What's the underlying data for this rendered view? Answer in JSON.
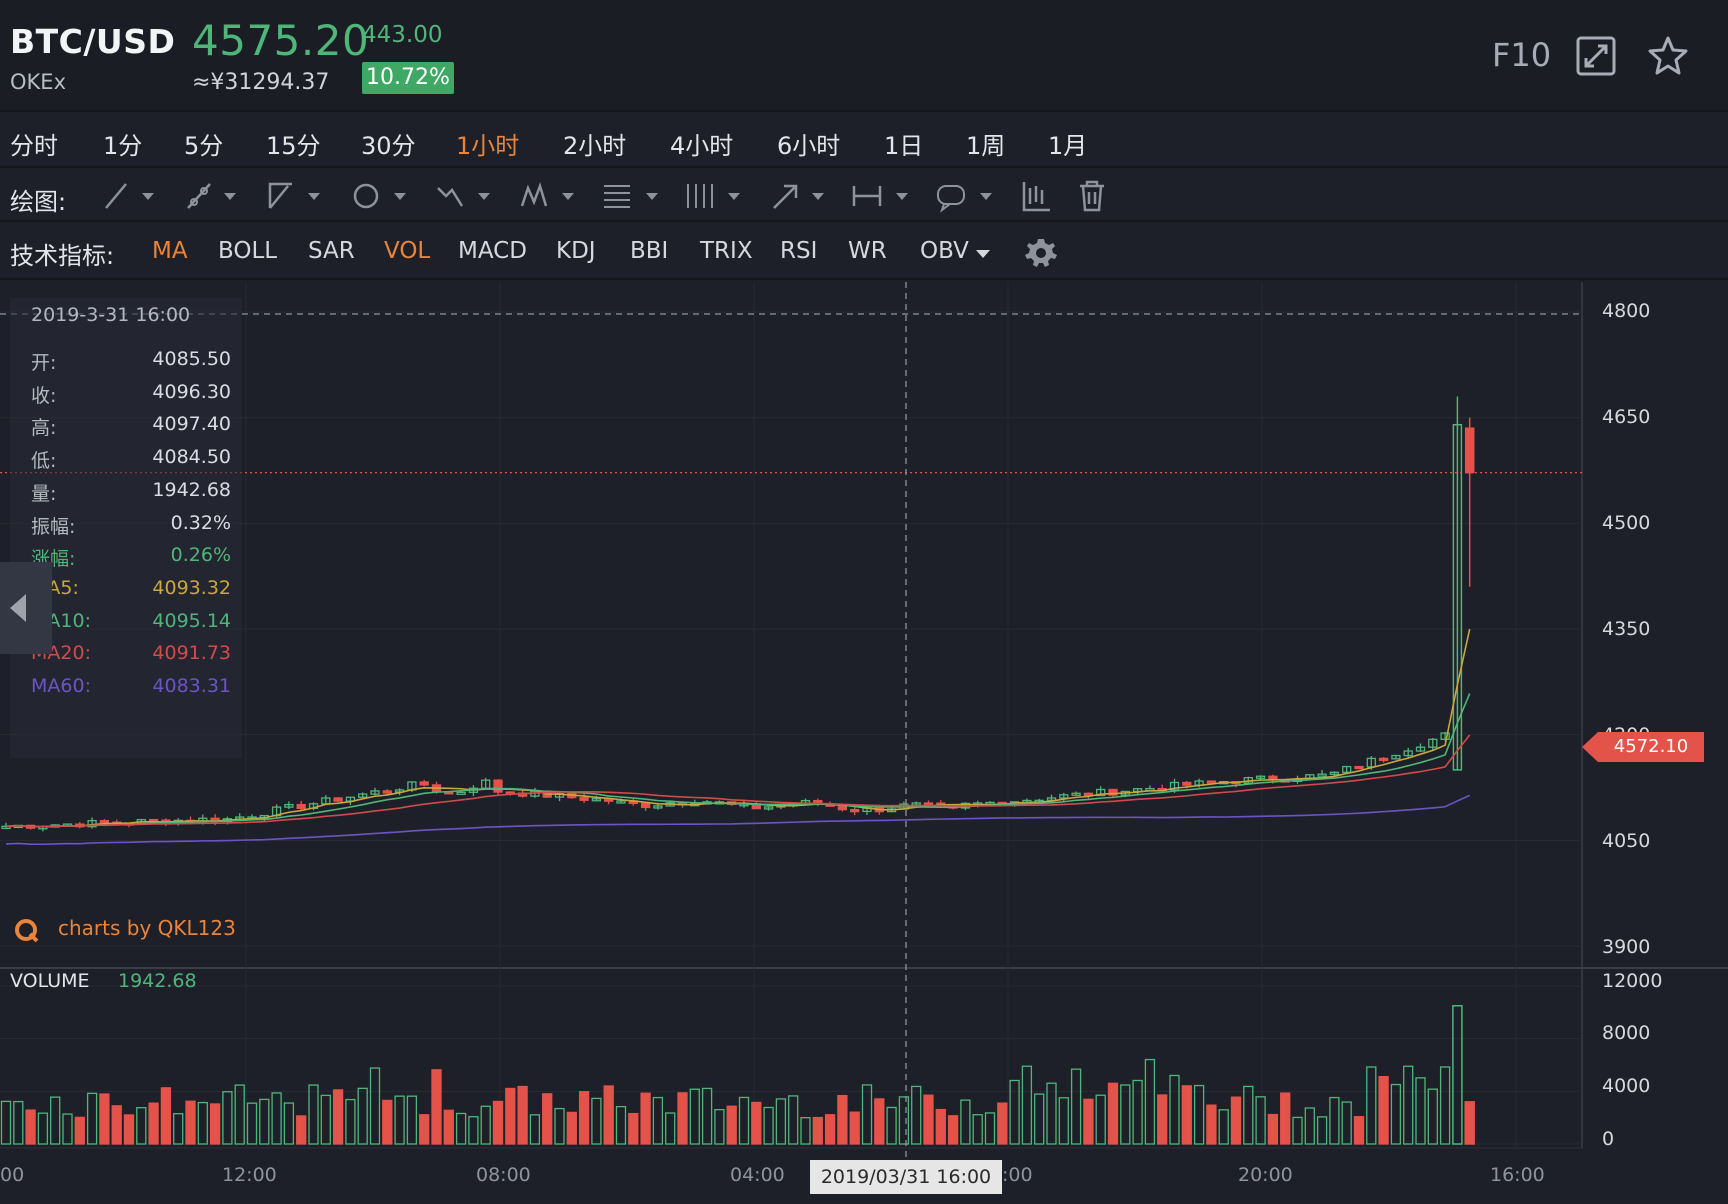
{
  "header": {
    "pair": "BTC/USD",
    "exchange": "OKEx",
    "price": "4575.20",
    "cny_price": "≈¥31294.37",
    "change": "443.00",
    "change_pct": "10.72%",
    "f10": "F10",
    "icons": [
      "expand-icon",
      "star-icon"
    ]
  },
  "periods": [
    "分时",
    "1分",
    "5分",
    "15分",
    "30分",
    "1小时",
    "2小时",
    "4小时",
    "6小时",
    "1日",
    "1周",
    "1月"
  ],
  "active_period": "1小时",
  "draw_toolbar": {
    "label": "绘图:",
    "tools": [
      "line-tool-icon",
      "ray-tool-icon",
      "channel-tool-icon",
      "circle-tool-icon",
      "wave-tool-icon",
      "pattern-tool-icon",
      "fibonacci-tool-icon",
      "gann-tool-icon",
      "arrow-tool-icon",
      "measure-tool-icon",
      "note-tool-icon",
      "candle-style-icon",
      "trash-icon"
    ]
  },
  "indicators": {
    "label": "技术指标:",
    "items": [
      "MA",
      "BOLL",
      "SAR",
      "VOL",
      "MACD",
      "KDJ",
      "BBI",
      "TRIX",
      "RSI",
      "WR",
      "OBV"
    ],
    "active": [
      "MA",
      "VOL"
    ]
  },
  "info_panel": {
    "datetime": "2019-3-31 16:00",
    "rows": [
      {
        "label": "开:",
        "value": "4085.50",
        "color": "#d9dce2"
      },
      {
        "label": "收:",
        "value": "4096.30",
        "color": "#d9dce2"
      },
      {
        "label": "高:",
        "value": "4097.40",
        "color": "#d9dce2"
      },
      {
        "label": "低:",
        "value": "4084.50",
        "color": "#d9dce2"
      },
      {
        "label": "量:",
        "value": "1942.68",
        "color": "#d9dce2"
      },
      {
        "label": "振幅:",
        "value": "0.32%",
        "color": "#d9dce2"
      },
      {
        "label": "涨幅:",
        "value": "0.26%",
        "color": "#4fb679"
      },
      {
        "label": "MA5:",
        "value": "4093.32",
        "color": "#c9a73b"
      },
      {
        "label": "MA10:",
        "value": "4095.14",
        "color": "#4fb679"
      },
      {
        "label": "MA20:",
        "value": "4091.73",
        "color": "#d24b4b"
      },
      {
        "label": "MA60:",
        "value": "4083.31",
        "color": "#6b54c6"
      }
    ]
  },
  "watermark": "charts by QKL123",
  "volume": {
    "label": "VOLUME",
    "value": "1942.68"
  },
  "price_axis": [
    "4800",
    "4650",
    "4500",
    "4350",
    "4200",
    "4050",
    "3900"
  ],
  "volume_axis": [
    "12000",
    "8000",
    "4000",
    "0"
  ],
  "time_axis": [
    "00",
    "12:00",
    "08:00",
    "04:00",
    ":00",
    "20:00",
    "16:00"
  ],
  "last_price_tag": "4572.10",
  "crosshair_time": "2019/03/31 16:00",
  "colors": {
    "up": "#4fb679",
    "down": "#e4534a",
    "accent": "#e9843a",
    "ma5": "#c9a73b",
    "ma10": "#4fb679",
    "ma20": "#d24b4b",
    "ma60": "#6b54c6"
  },
  "chart_data": {
    "type": "candlestick",
    "price_ylim": [
      3900,
      4850
    ],
    "volume_ylim": [
      0,
      12000
    ],
    "candles_summary": "hourly BTC/USD candles; flat around 4070-4130 then spike to ~4680 high",
    "last_close": 4572.1,
    "spike_high": 4680,
    "ma_end_values": {
      "MA5": 4340,
      "MA10": 4240,
      "MA20": 4190,
      "MA60": 4130
    },
    "volume_spike": 10500
  }
}
